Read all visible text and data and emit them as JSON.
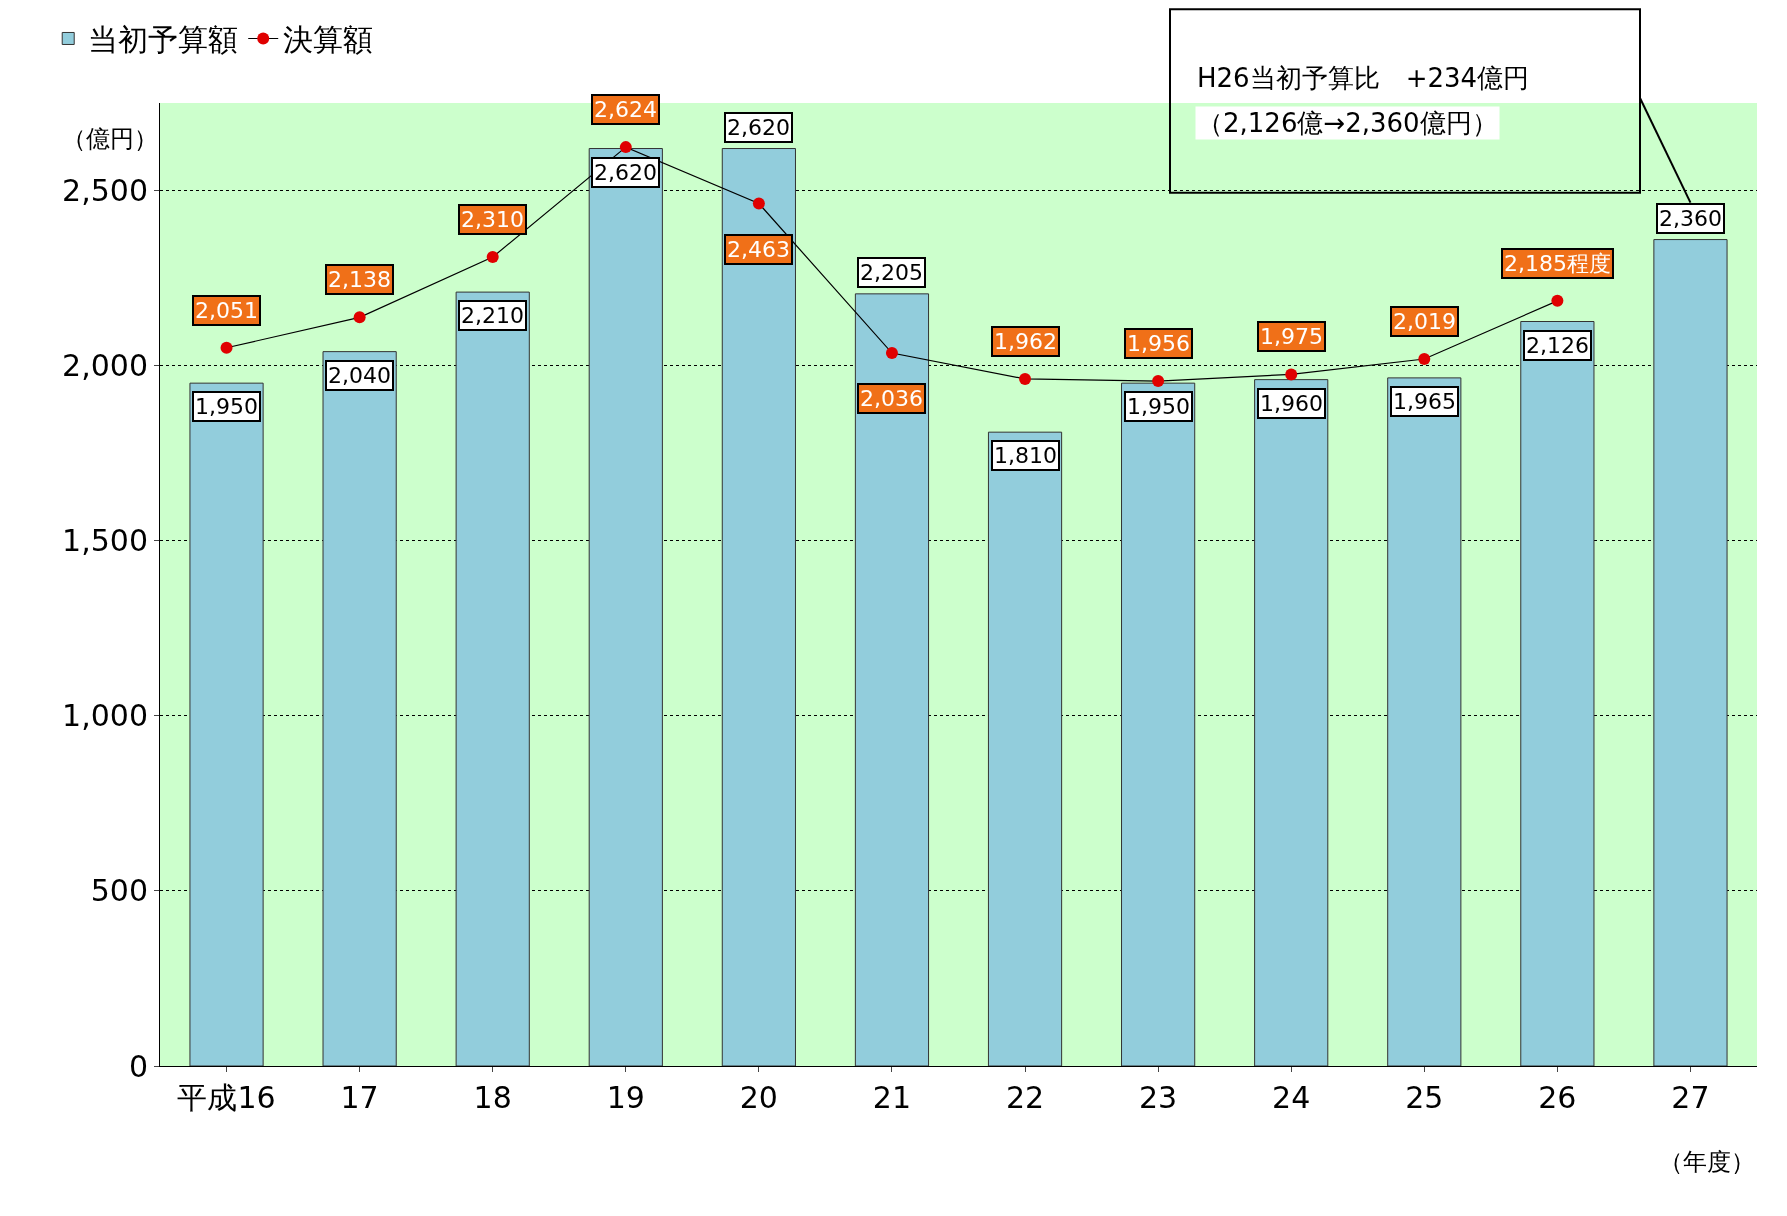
{
  "chart_data": {
    "type": "bar",
    "categories": [
      "平成16",
      "17",
      "18",
      "19",
      "20",
      "21",
      "22",
      "23",
      "24",
      "25",
      "26",
      "27"
    ],
    "series": [
      {
        "name": "当初予算額",
        "color": "#92cddc",
        "values": [
          1950,
          2040,
          2210,
          2620,
          2620,
          2205,
          1810,
          1950,
          1960,
          1965,
          2126,
          2360
        ],
        "value_labels": [
          "1,950",
          "2,040",
          "2,210",
          "2,620",
          "2,620",
          "2,205",
          "1,810",
          "1,950",
          "1,960",
          "1,965",
          "2,126",
          "2,360"
        ]
      },
      {
        "name": "決算額",
        "type": "line",
        "color": "#e00000",
        "marker": "circle",
        "values": [
          2051,
          2138,
          2310,
          2624,
          2463,
          2036,
          1962,
          1956,
          1975,
          2019,
          2185,
          null
        ],
        "value_labels": [
          "2,051",
          "2,138",
          "2,310",
          "2,624",
          "2,463",
          "2,036",
          "1,962",
          "1,956",
          "1,975",
          "2,019",
          "2,185程度",
          null
        ]
      }
    ],
    "ylabel": "（億円）",
    "xlabel": "（年度）",
    "ylim": [
      0,
      2750
    ],
    "yticks": [
      0,
      {
        "value": 500,
        "label": "500"
      },
      {
        "value": 1000,
        "label": "1,000"
      },
      {
        "value": 1500,
        "label": "1,500"
      },
      {
        "value": 2000,
        "label": "2,000"
      },
      {
        "value": 2500,
        "label": "2,500"
      }
    ],
    "grid": "y",
    "legend": "top left",
    "annotations": [
      "H26当初予算比　+234億円",
      "（2,126億→2,360億円）"
    ]
  }
}
